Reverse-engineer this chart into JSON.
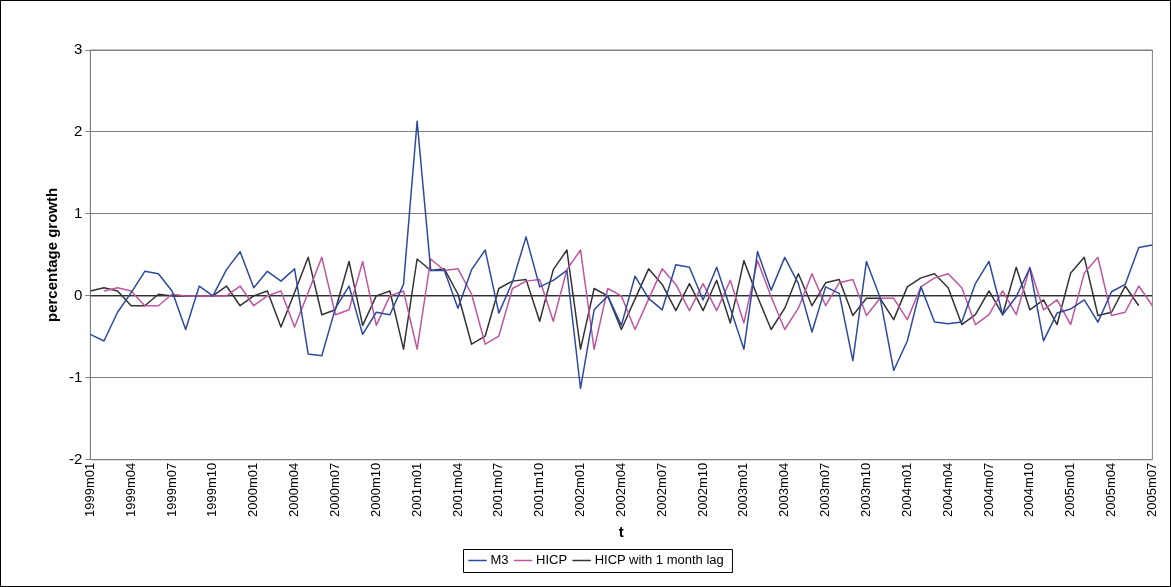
{
  "chart_data": {
    "type": "line",
    "xlabel": "t",
    "ylabel": "percentage growth",
    "categories": [
      "1999m01",
      null,
      null,
      "1999m04",
      null,
      null,
      "1999m07",
      null,
      null,
      "1999m10",
      null,
      null,
      "2000m01",
      null,
      null,
      "2000m04",
      null,
      null,
      "2000m07",
      null,
      null,
      "2000m10",
      null,
      null,
      "2001m01",
      null,
      null,
      "2001m04",
      null,
      null,
      "2001m07",
      null,
      null,
      "2001m10",
      null,
      null,
      "2002m01",
      null,
      null,
      "2002m04",
      null,
      null,
      "2002m07",
      null,
      null,
      "2002m10",
      null,
      null,
      "2003m01",
      null,
      null,
      "2003m04",
      null,
      null,
      "2003m07",
      null,
      null,
      "2003m10",
      null,
      null,
      "2004m01",
      null,
      null,
      "2004m04",
      null,
      null,
      "2004m07",
      null,
      null,
      "2004m10",
      null,
      null,
      "2005m01",
      null,
      null,
      "2005m04",
      null,
      null,
      "2005m07"
    ],
    "series": [
      {
        "name": "M3",
        "color": "#2e4a9e",
        "values": [
          -0.47,
          -0.55,
          -0.2,
          0.04,
          0.3,
          0.27,
          0.06,
          -0.41,
          0.12,
          0,
          0.32,
          0.54,
          0.1,
          0.3,
          0.18,
          0.33,
          -0.71,
          -0.73,
          -0.15,
          0.12,
          -0.47,
          -0.2,
          -0.23,
          0.14,
          2.13,
          0.31,
          0.31,
          -0.15,
          0.32,
          0.56,
          -0.21,
          0.17,
          0.72,
          0.11,
          0.19,
          0.31,
          -1.13,
          -0.17,
          0,
          -0.36,
          0.24,
          -0.03,
          -0.17,
          0.38,
          0.35,
          -0.05,
          0.35,
          -0.15,
          -0.65,
          0.54,
          0.07,
          0.47,
          0.15,
          -0.44,
          0.11,
          0.03,
          -0.79,
          0.42,
          -0.02,
          -0.91,
          -0.55,
          0.11,
          -0.32,
          -0.34,
          -0.32,
          0.15,
          0.42,
          -0.23,
          -0.01,
          0.34,
          -0.55,
          -0.21,
          -0.16,
          -0.05,
          -0.32,
          0.05,
          0.14,
          0.59,
          0.62
        ]
      },
      {
        "name": "HICP",
        "color": "#c0569f",
        "values": [
          null,
          0.06,
          0.1,
          0.06,
          -0.12,
          -0.12,
          0.02,
          0,
          0,
          0,
          0,
          0.12,
          -0.12,
          0,
          0.06,
          -0.38,
          0.04,
          0.47,
          -0.23,
          -0.17,
          0.42,
          -0.36,
          0,
          0.06,
          -0.65,
          0.45,
          0.31,
          0.33,
          0.02,
          -0.59,
          -0.49,
          0.09,
          0.18,
          0.2,
          -0.31,
          0.32,
          0.56,
          -0.65,
          0.09,
          0,
          -0.41,
          -0.04,
          0.33,
          0.14,
          -0.18,
          0.15,
          -0.18,
          0.19,
          -0.33,
          0.43,
          -0.01,
          -0.41,
          -0.15,
          0.27,
          -0.12,
          0.16,
          0.2,
          -0.24,
          -0.03,
          -0.03,
          -0.29,
          0.11,
          0.22,
          0.27,
          0.1,
          -0.35,
          -0.23,
          0.06,
          -0.23,
          0.35,
          -0.17,
          -0.05,
          -0.35,
          0.28,
          0.47,
          -0.24,
          -0.2,
          0.12,
          -0.12
        ]
      },
      {
        "name": "HICP with 1 month lag",
        "color": "#333333",
        "values": [
          0.06,
          0.1,
          0.06,
          -0.12,
          -0.12,
          0.02,
          0,
          0,
          0,
          0,
          0.12,
          -0.12,
          0,
          0.06,
          -0.38,
          0.04,
          0.47,
          -0.23,
          -0.17,
          0.42,
          -0.36,
          0,
          0.06,
          -0.65,
          0.45,
          0.31,
          0.33,
          0.02,
          -0.59,
          -0.49,
          0.09,
          0.18,
          0.2,
          -0.31,
          0.32,
          0.56,
          -0.65,
          0.09,
          0,
          -0.41,
          -0.04,
          0.33,
          0.14,
          -0.18,
          0.15,
          -0.18,
          0.19,
          -0.33,
          0.43,
          -0.01,
          -0.41,
          -0.15,
          0.27,
          -0.12,
          0.16,
          0.2,
          -0.24,
          -0.03,
          -0.03,
          -0.29,
          0.11,
          0.22,
          0.27,
          0.1,
          -0.35,
          -0.23,
          0.06,
          -0.23,
          0.35,
          -0.17,
          -0.05,
          -0.35,
          0.28,
          0.47,
          -0.24,
          -0.2,
          0.12,
          -0.12,
          null
        ]
      }
    ],
    "ylim": [
      -2,
      3
    ],
    "yticks": [
      -2,
      -1,
      0,
      1,
      2,
      3
    ],
    "grid": "y",
    "legend": "bottom",
    "marker": "none",
    "line_style": "solid"
  }
}
